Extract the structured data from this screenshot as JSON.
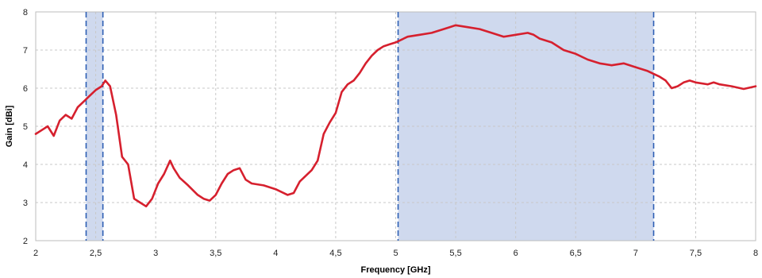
{
  "chart_data": {
    "type": "line",
    "title": "",
    "xlabel": "Frequency [GHz]",
    "ylabel": "Gain [dBi]",
    "xlim": [
      2,
      8
    ],
    "ylim": [
      2,
      8
    ],
    "x_ticks": [
      {
        "value": 2,
        "label": "2"
      },
      {
        "value": 2.5,
        "label": "2,5"
      },
      {
        "value": 3,
        "label": "3"
      },
      {
        "value": 3.5,
        "label": "3,5"
      },
      {
        "value": 4,
        "label": "4"
      },
      {
        "value": 4.5,
        "label": "4,5"
      },
      {
        "value": 5,
        "label": "5"
      },
      {
        "value": 5.5,
        "label": "5,5"
      },
      {
        "value": 6,
        "label": "6"
      },
      {
        "value": 6.5,
        "label": "6,5"
      },
      {
        "value": 7,
        "label": "7"
      },
      {
        "value": 7.5,
        "label": "7,5"
      },
      {
        "value": 8,
        "label": "8"
      }
    ],
    "y_ticks": [
      {
        "value": 2,
        "label": "2"
      },
      {
        "value": 3,
        "label": "3"
      },
      {
        "value": 4,
        "label": "4"
      },
      {
        "value": 5,
        "label": "5"
      },
      {
        "value": 6,
        "label": "6"
      },
      {
        "value": 7,
        "label": "7"
      },
      {
        "value": 8,
        "label": "8"
      }
    ],
    "grid": true,
    "shaded_bands": [
      {
        "x0": 2.42,
        "x1": 2.56
      },
      {
        "x0": 5.02,
        "x1": 7.15
      }
    ],
    "series": [
      {
        "color": "#d6202e",
        "x": [
          2.0,
          2.05,
          2.1,
          2.15,
          2.2,
          2.25,
          2.3,
          2.35,
          2.4,
          2.45,
          2.5,
          2.55,
          2.58,
          2.62,
          2.67,
          2.72,
          2.77,
          2.82,
          2.87,
          2.92,
          2.97,
          3.02,
          3.07,
          3.12,
          3.15,
          3.2,
          3.27,
          3.35,
          3.4,
          3.45,
          3.5,
          3.55,
          3.6,
          3.65,
          3.7,
          3.75,
          3.8,
          3.9,
          4.0,
          4.1,
          4.15,
          4.2,
          4.25,
          4.3,
          4.35,
          4.4,
          4.45,
          4.5,
          4.55,
          4.6,
          4.65,
          4.7,
          4.75,
          4.8,
          4.85,
          4.9,
          4.95,
          5.0,
          5.1,
          5.2,
          5.3,
          5.4,
          5.45,
          5.5,
          5.6,
          5.7,
          5.8,
          5.9,
          6.0,
          6.1,
          6.15,
          6.2,
          6.3,
          6.4,
          6.5,
          6.6,
          6.7,
          6.8,
          6.9,
          7.0,
          7.1,
          7.2,
          7.25,
          7.3,
          7.35,
          7.4,
          7.45,
          7.5,
          7.6,
          7.65,
          7.7,
          7.8,
          7.9,
          8.0
        ],
        "y": [
          4.8,
          4.9,
          5.0,
          4.75,
          5.15,
          5.3,
          5.2,
          5.5,
          5.65,
          5.8,
          5.95,
          6.05,
          6.2,
          6.05,
          5.3,
          4.2,
          4.0,
          3.1,
          3.0,
          2.9,
          3.1,
          3.5,
          3.75,
          4.1,
          3.9,
          3.65,
          3.45,
          3.2,
          3.1,
          3.05,
          3.2,
          3.5,
          3.75,
          3.85,
          3.9,
          3.6,
          3.5,
          3.45,
          3.35,
          3.2,
          3.25,
          3.55,
          3.7,
          3.85,
          4.1,
          4.8,
          5.1,
          5.35,
          5.9,
          6.1,
          6.2,
          6.4,
          6.65,
          6.85,
          7.0,
          7.1,
          7.15,
          7.2,
          7.35,
          7.4,
          7.45,
          7.55,
          7.6,
          7.65,
          7.6,
          7.55,
          7.45,
          7.35,
          7.4,
          7.45,
          7.4,
          7.3,
          7.2,
          7.0,
          6.9,
          6.75,
          6.65,
          6.6,
          6.65,
          6.55,
          6.45,
          6.3,
          6.2,
          6.0,
          6.05,
          6.15,
          6.2,
          6.15,
          6.1,
          6.15,
          6.1,
          6.05,
          5.98,
          6.05
        ]
      }
    ]
  }
}
